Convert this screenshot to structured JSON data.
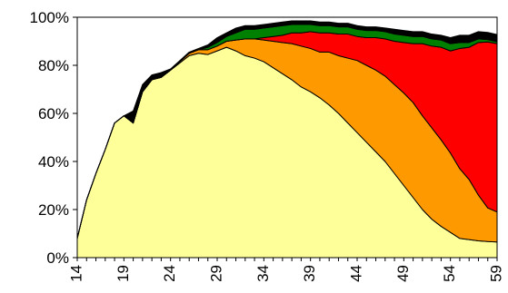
{
  "chart_data": {
    "type": "area",
    "stacked": true,
    "title": "",
    "xlabel": "",
    "ylabel": "",
    "x": [
      14,
      15,
      16,
      17,
      18,
      19,
      20,
      21,
      22,
      23,
      24,
      25,
      26,
      27,
      28,
      29,
      30,
      31,
      32,
      33,
      34,
      35,
      36,
      37,
      38,
      39,
      40,
      41,
      42,
      43,
      44,
      45,
      46,
      47,
      48,
      49,
      50,
      51,
      52,
      53,
      54,
      55,
      56,
      57,
      58,
      59
    ],
    "x_tick_labels": [
      "14",
      "19",
      "24",
      "29",
      "34",
      "39",
      "44",
      "49",
      "54",
      "59"
    ],
    "y_tick_labels": [
      "0%",
      "20%",
      "40%",
      "60%",
      "80%",
      "100%"
    ],
    "ylim": [
      0,
      100
    ],
    "grid": false,
    "legend": "none",
    "series": [
      {
        "color": "#ffff99",
        "values": [
          8,
          24,
          35,
          45,
          56,
          59,
          56,
          69,
          74,
          75,
          78,
          81,
          84,
          85,
          84.5,
          86,
          87.5,
          86,
          84,
          83,
          81.5,
          79,
          76.5,
          74,
          71,
          69,
          66.5,
          63.5,
          60,
          56,
          52,
          48,
          44,
          40,
          35,
          30,
          25,
          20,
          16,
          13,
          10.5,
          8,
          7.5,
          7,
          6.7,
          6.5
        ]
      },
      {
        "color": "#ff9900",
        "values": [
          0,
          0,
          0,
          0,
          0,
          0,
          0,
          0,
          0,
          0,
          0,
          0.5,
          1,
          1.5,
          2,
          2,
          2.5,
          4.5,
          7,
          8,
          9,
          11,
          13,
          15,
          17,
          18,
          19,
          22,
          24,
          27,
          30,
          32,
          34,
          35.5,
          37,
          38.5,
          39.5,
          39,
          38,
          36,
          33,
          29,
          25,
          19,
          14,
          12.5
        ]
      },
      {
        "color": "#ff0000",
        "values": [
          0,
          0,
          0,
          0,
          0,
          0,
          0,
          0,
          0,
          0,
          0,
          0,
          0,
          0,
          0,
          0,
          0,
          0,
          0,
          0,
          1,
          2,
          3,
          4.5,
          5.5,
          7,
          8,
          8,
          9,
          10,
          10,
          11.5,
          13.5,
          15.5,
          18,
          21,
          24.5,
          30,
          34,
          38.5,
          42.5,
          50,
          55,
          63.5,
          69,
          70
        ]
      },
      {
        "color": "#008000",
        "values": [
          0,
          0,
          0,
          0,
          0,
          0,
          0,
          0,
          0,
          0,
          0,
          0,
          0,
          0,
          1,
          1.5,
          2,
          3,
          4,
          4,
          4,
          4,
          4,
          3.5,
          3.5,
          3,
          3,
          3,
          3,
          3,
          3,
          3,
          3,
          3,
          3,
          3,
          3,
          3,
          3,
          3,
          3,
          2.5,
          2,
          1.5,
          1,
          0.8
        ]
      },
      {
        "color": "#000000",
        "values": [
          0,
          0,
          0,
          0,
          0,
          0,
          5,
          3,
          2,
          2,
          0.5,
          0.5,
          0.5,
          0.5,
          1,
          2,
          1.5,
          2,
          1.5,
          1.5,
          1.5,
          1.5,
          1.5,
          1.5,
          1.5,
          1.5,
          1.5,
          1.5,
          1.5,
          1.5,
          1.5,
          1.5,
          1.5,
          1.5,
          2,
          2,
          2,
          2,
          2,
          2,
          2.5,
          3,
          3,
          3,
          3,
          3
        ]
      }
    ]
  }
}
